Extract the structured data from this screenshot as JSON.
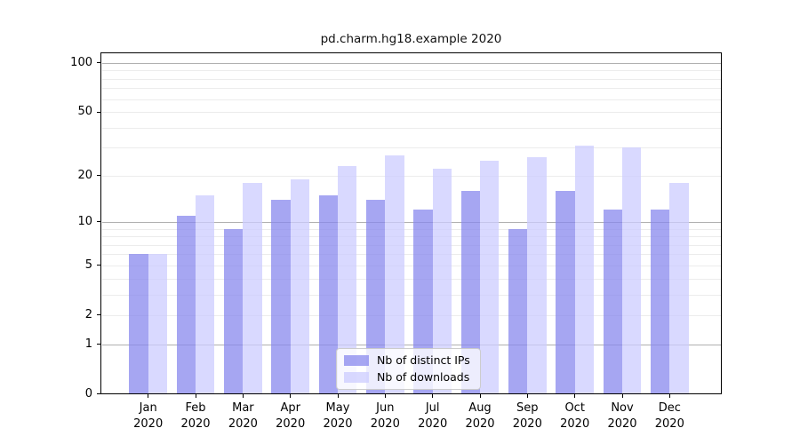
{
  "chart_data": {
    "type": "bar",
    "title": "pd.charm.hg18.example 2020",
    "categories": [
      "Jan",
      "Feb",
      "Mar",
      "Apr",
      "May",
      "Jun",
      "Jul",
      "Aug",
      "Sep",
      "Oct",
      "Nov",
      "Dec"
    ],
    "year": "2020",
    "series": [
      {
        "name": "Nb of distinct IPs",
        "color": "rgba(136,136,238,0.75)",
        "values": [
          6,
          11,
          9,
          14,
          15,
          14,
          12,
          16,
          9,
          16,
          12,
          12
        ]
      },
      {
        "name": "Nb of downloads",
        "color": "rgba(204,204,255,0.75)",
        "values": [
          6,
          15,
          18,
          19,
          23,
          27,
          22,
          25,
          26,
          31,
          30,
          18
        ]
      }
    ],
    "xlabel": "",
    "ylabel": "",
    "yscale": "log1p",
    "yticks": [
      100,
      50,
      20,
      10,
      5,
      2,
      1,
      0
    ],
    "ylim": [
      0,
      115.6
    ],
    "grid": true,
    "legend_position": "lower-center-inside",
    "colors": {
      "major_gridline": "#b0b0b0",
      "minor_gridline": "#ececec",
      "axis": "#000000",
      "background": "#ffffff"
    }
  }
}
